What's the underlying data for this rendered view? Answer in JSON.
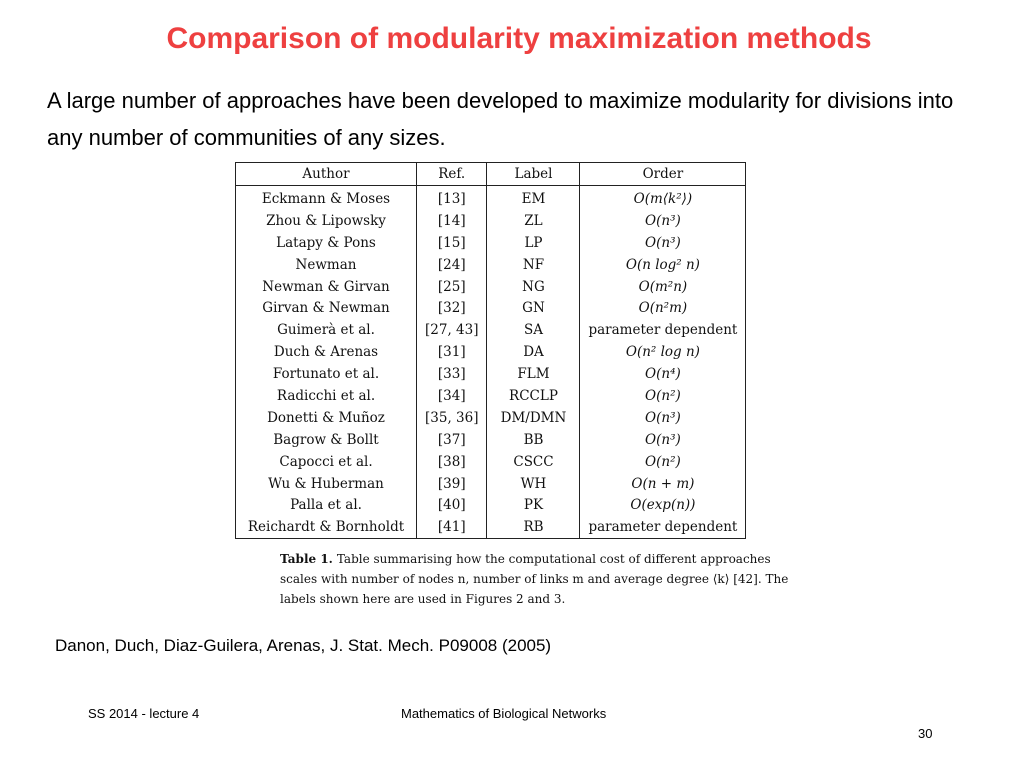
{
  "slide": {
    "title": "Comparison of modularity maximization methods",
    "intro": "A large number of approaches have been developed to maximize modularity for divisions into any number of communities of any sizes."
  },
  "table": {
    "headers": [
      "Author",
      "Ref.",
      "Label",
      "Order"
    ],
    "rows": [
      {
        "author": "Eckmann & Moses",
        "ref": "[13]",
        "label": "EM",
        "order": "O(m⟨k²⟩)"
      },
      {
        "author": "Zhou & Lipowsky",
        "ref": "[14]",
        "label": "ZL",
        "order": "O(n³)"
      },
      {
        "author": "Latapy & Pons",
        "ref": "[15]",
        "label": "LP",
        "order": "O(n³)"
      },
      {
        "author": "Newman",
        "ref": "[24]",
        "label": "NF",
        "order": "O(n log² n)"
      },
      {
        "author": "Newman & Girvan",
        "ref": "[25]",
        "label": "NG",
        "order": "O(m²n)"
      },
      {
        "author": "Girvan & Newman",
        "ref": "[32]",
        "label": "GN",
        "order": "O(n²m)"
      },
      {
        "author": "Guimerà et al.",
        "ref": "[27, 43]",
        "label": "SA",
        "order": "parameter dependent"
      },
      {
        "author": "Duch & Arenas",
        "ref": "[31]",
        "label": "DA",
        "order": "O(n² log n)"
      },
      {
        "author": "Fortunato et al.",
        "ref": "[33]",
        "label": "FLM",
        "order": "O(n⁴)"
      },
      {
        "author": "Radicchi et al.",
        "ref": "[34]",
        "label": "RCCLP",
        "order": "O(n²)"
      },
      {
        "author": "Donetti & Muñoz",
        "ref": "[35, 36]",
        "label": "DM/DMN",
        "order": "O(n³)"
      },
      {
        "author": "Bagrow & Bollt",
        "ref": "[37]",
        "label": "BB",
        "order": "O(n³)"
      },
      {
        "author": "Capocci et al.",
        "ref": "[38]",
        "label": "CSCC",
        "order": "O(n²)"
      },
      {
        "author": "Wu & Huberman",
        "ref": "[39]",
        "label": "WH",
        "order": "O(n + m)"
      },
      {
        "author": "Palla et al.",
        "ref": "[40]",
        "label": "PK",
        "order": "O(exp(n))"
      },
      {
        "author": "Reichardt & Bornholdt",
        "ref": "[41]",
        "label": "RB",
        "order": "parameter dependent"
      }
    ],
    "caption_label": "Table 1.",
    "caption_text": "Table summarising how the computational cost of different approaches scales with number of nodes n, number of links m and average degree ⟨k⟩ [42]. The labels shown here are used in Figures 2 and 3."
  },
  "reference": "Danon, Duch, Diaz-Guilera, Arenas, J. Stat. Mech. P09008 (2005)",
  "footer": {
    "left": "SS 2014 - lecture 4",
    "center": "Mathematics of Biological Networks",
    "page_number": "30"
  },
  "colors": {
    "title": "#ee4040",
    "text": "#000000",
    "background": "#ffffff"
  }
}
